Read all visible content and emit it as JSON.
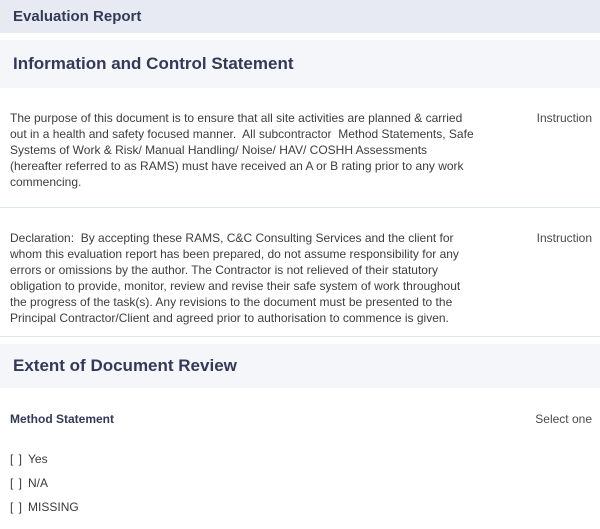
{
  "report": {
    "title": "Evaluation Report"
  },
  "colors": {
    "title_band_bg": "#e7eaf3",
    "section_band_bg": "#f5f6fa",
    "heading_text": "#333a56",
    "body_text": "#3d3d3d",
    "meta_text": "#4a4a4a",
    "divider": "#dfe4ee"
  },
  "sections": [
    {
      "heading": "Information and Control Statement",
      "blocks": [
        {
          "text": "The purpose of this document is to ensure that all site activities are planned & carried out in a health and safety focused manner.  All subcontractor  Method Statements, Safe Systems of Work & Risk/ Manual Handling/ Noise/ HAV/ COSHH Assessments (hereafter referred to as RAMS) must have received an A or B rating prior to any work commencing.",
          "tag": "Instruction"
        },
        {
          "text": "Declaration:  By accepting these RAMS, C&C Consulting Services and the client for whom this evaluation report has been prepared, do not assume responsibility for any errors or omissions by the author. The Contractor is not relieved of their statutory obligation to provide, monitor, review and revise their safe system of work throughout the progress of the task(s). Any revisions to the document must be presented to the Principal Contractor/Client and agreed prior to authorisation to commence is given.",
          "tag": "Instruction"
        }
      ]
    },
    {
      "heading": "Extent of Document Review",
      "question": {
        "label": "Method Statement",
        "hint": "Select one",
        "options": [
          {
            "box": "[ ]",
            "label": "Yes"
          },
          {
            "box": "[ ]",
            "label": "N/A"
          },
          {
            "box": "[ ]",
            "label": "MISSING"
          }
        ]
      }
    }
  ]
}
